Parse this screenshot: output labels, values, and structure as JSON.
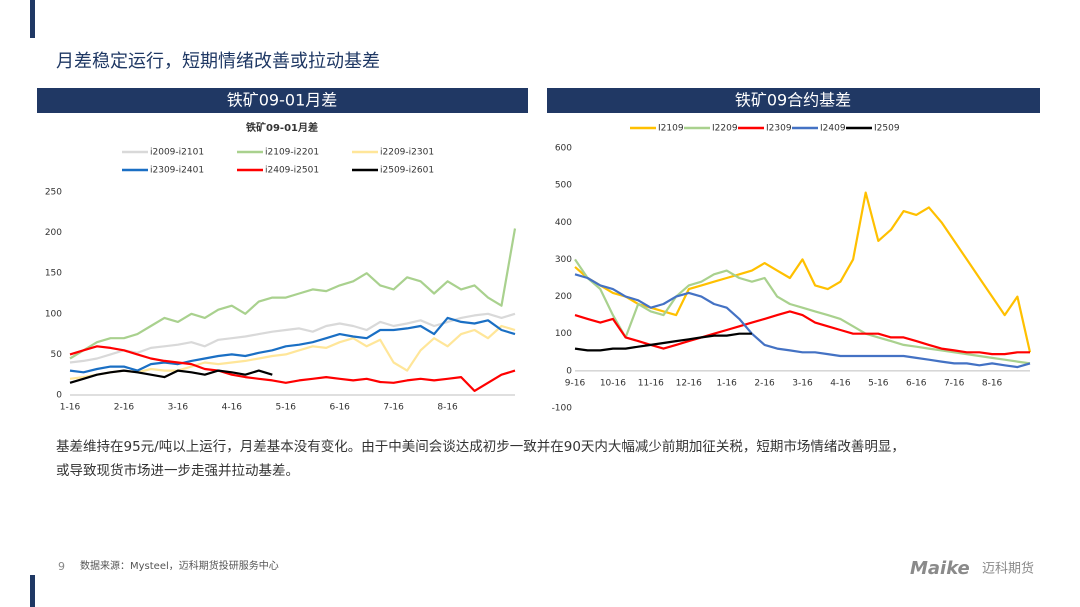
{
  "header": {
    "title": "月差稳定运行，短期情绪改善或拉动基差"
  },
  "panels": [
    {
      "title": "铁矿09-01月差"
    },
    {
      "title": "铁矿09合约基差"
    }
  ],
  "chart_data": [
    {
      "type": "line",
      "title": "铁矿09-01月差",
      "categories": [
        "1-16",
        null,
        null,
        null,
        "2-16",
        null,
        null,
        null,
        "3-16",
        null,
        null,
        null,
        "4-16",
        null,
        null,
        null,
        "5-16",
        null,
        null,
        null,
        "6-16",
        null,
        null,
        null,
        "7-16",
        null,
        null,
        null,
        "8-16",
        null,
        null,
        null,
        null,
        null
      ],
      "ylim": [
        0,
        250
      ],
      "yticks": [
        0,
        50,
        100,
        150,
        200,
        250
      ],
      "series": [
        {
          "name": "i2009-i2101",
          "color": "#d9d9d9",
          "values": [
            40,
            42,
            45,
            50,
            55,
            52,
            58,
            60,
            62,
            65,
            60,
            68,
            70,
            72,
            75,
            78,
            80,
            82,
            78,
            85,
            88,
            85,
            80,
            90,
            85,
            88,
            92,
            85,
            90,
            95,
            98,
            100,
            95,
            100
          ]
        },
        {
          "name": "i2109-i2201",
          "color": "#a9d18e",
          "values": [
            45,
            55,
            65,
            70,
            70,
            75,
            85,
            95,
            90,
            100,
            95,
            105,
            110,
            100,
            115,
            120,
            120,
            125,
            130,
            128,
            135,
            140,
            150,
            135,
            130,
            145,
            140,
            125,
            140,
            130,
            135,
            120,
            110,
            205
          ]
        },
        {
          "name": "i2209-i2301",
          "color": "#ffe699",
          "values": [
            20,
            22,
            25,
            28,
            30,
            28,
            32,
            30,
            30,
            35,
            40,
            38,
            40,
            42,
            45,
            48,
            50,
            55,
            60,
            58,
            65,
            70,
            60,
            68,
            40,
            30,
            55,
            70,
            60,
            75,
            80,
            70,
            85,
            80
          ]
        },
        {
          "name": "i2309-i2401",
          "color": "#1a6fc4",
          "values": [
            30,
            28,
            32,
            35,
            35,
            30,
            38,
            40,
            38,
            42,
            45,
            48,
            50,
            48,
            52,
            55,
            60,
            62,
            65,
            70,
            75,
            72,
            70,
            80,
            80,
            82,
            85,
            75,
            95,
            90,
            88,
            92,
            80,
            75
          ]
        },
        {
          "name": "i2409-i2501",
          "color": "#ff0000",
          "values": [
            50,
            55,
            60,
            58,
            55,
            50,
            45,
            42,
            40,
            38,
            32,
            30,
            25,
            22,
            20,
            18,
            15,
            18,
            20,
            22,
            20,
            18,
            20,
            16,
            15,
            18,
            20,
            18,
            20,
            22,
            5,
            15,
            25,
            30
          ]
        },
        {
          "name": "i2509-i2601",
          "color": "#000000",
          "values": [
            15,
            20,
            25,
            28,
            30,
            28,
            25,
            22,
            30,
            28,
            25,
            30,
            28,
            25,
            30,
            25,
            null,
            null,
            null,
            null,
            null,
            null,
            null,
            null,
            null,
            null,
            null,
            null,
            null,
            null,
            null,
            null,
            null,
            null
          ]
        }
      ]
    },
    {
      "type": "line",
      "categories": [
        "9-16",
        null,
        null,
        "10-16",
        null,
        null,
        "11-16",
        null,
        null,
        "12-16",
        null,
        null,
        "1-16",
        null,
        null,
        "2-16",
        null,
        null,
        "3-16",
        null,
        null,
        "4-16",
        null,
        null,
        "5-16",
        null,
        null,
        "6-16",
        null,
        null,
        "7-16",
        null,
        null,
        "8-16",
        null,
        null,
        null
      ],
      "ylim": [
        -100,
        600
      ],
      "yticks": [
        -100,
        0,
        100,
        200,
        300,
        400,
        500,
        600
      ],
      "series": [
        {
          "name": "I2109",
          "color": "#ffc000",
          "values": [
            280,
            250,
            230,
            210,
            200,
            180,
            170,
            160,
            150,
            220,
            230,
            240,
            250,
            260,
            270,
            290,
            270,
            250,
            300,
            230,
            220,
            240,
            300,
            480,
            350,
            380,
            430,
            420,
            440,
            400,
            350,
            300,
            250,
            200,
            150,
            200,
            50
          ]
        },
        {
          "name": "I2209",
          "color": "#a9d18e",
          "values": [
            300,
            250,
            220,
            150,
            90,
            180,
            160,
            150,
            200,
            230,
            240,
            260,
            270,
            250,
            240,
            250,
            200,
            180,
            170,
            160,
            150,
            140,
            120,
            100,
            90,
            80,
            70,
            65,
            60,
            55,
            50,
            45,
            40,
            35,
            30,
            25,
            20
          ]
        },
        {
          "name": "I2309",
          "color": "#ff0000",
          "values": [
            150,
            140,
            130,
            140,
            90,
            80,
            70,
            60,
            70,
            80,
            90,
            100,
            110,
            120,
            130,
            140,
            150,
            160,
            150,
            130,
            120,
            110,
            100,
            100,
            100,
            90,
            90,
            80,
            70,
            60,
            55,
            50,
            50,
            45,
            45,
            50,
            50
          ]
        },
        {
          "name": "I2409",
          "color": "#4472c4",
          "values": [
            260,
            250,
            230,
            220,
            200,
            190,
            170,
            180,
            200,
            210,
            200,
            180,
            170,
            140,
            100,
            70,
            60,
            55,
            50,
            50,
            45,
            40,
            40,
            40,
            40,
            40,
            40,
            35,
            30,
            25,
            20,
            20,
            15,
            20,
            15,
            10,
            20
          ]
        },
        {
          "name": "I2509",
          "color": "#000000",
          "values": [
            60,
            55,
            55,
            60,
            60,
            65,
            70,
            75,
            80,
            85,
            90,
            95,
            95,
            100,
            100,
            null,
            null,
            null,
            null,
            null,
            null,
            null,
            null,
            null,
            null,
            null,
            null,
            null,
            null,
            null,
            null,
            null,
            null,
            null,
            null,
            null,
            null
          ]
        }
      ]
    }
  ],
  "body": [
    "基差维持在95元/吨以上运行，月差基本没有变化。由于中美间会谈达成初步一致并在90天内大幅减少前期加征关税，短期市场情绪改善明显，",
    "或导致现货市场进一步走强并拉动基差。"
  ],
  "footer": {
    "page": "9",
    "source": "数据来源：Mysteel，迈科期货投研服务中心",
    "logo": "Maike",
    "logo_cn": "迈科期货"
  }
}
